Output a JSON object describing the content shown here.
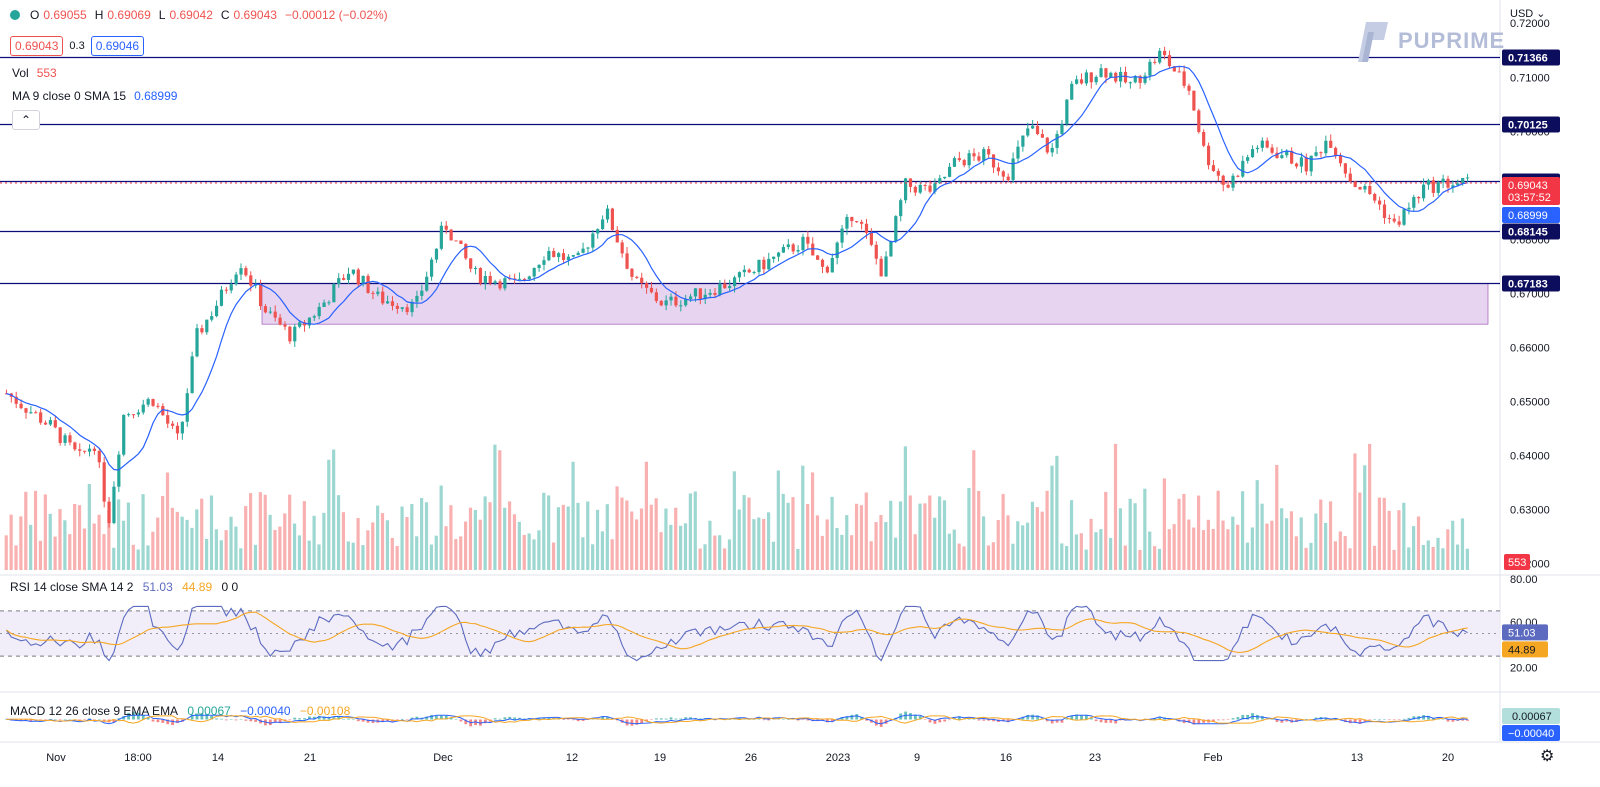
{
  "header": {
    "ohlc": [
      {
        "key": "O",
        "value": "0.69055"
      },
      {
        "key": "H",
        "value": "0.69069"
      },
      {
        "key": "L",
        "value": "0.69042"
      },
      {
        "key": "C",
        "value": "0.69043"
      }
    ],
    "change": "−0.00012 (−0.02%)",
    "sell_price": "0.69043",
    "spread": "0.3",
    "buy_price": "0.69046"
  },
  "legend": {
    "volume_label": "Vol",
    "volume_value": "553",
    "ma_label": "MA 9 close 0 SMA 15",
    "ma_value": "0.68999",
    "collapse_symbol": "⌃"
  },
  "brand": {
    "name": "PUPRIME"
  },
  "currency_menu": "USD ⌄",
  "settings_icon": "gear-icon",
  "colors": {
    "up": "#26a69a",
    "down": "#ef5350",
    "ma": "#2962ff",
    "horizontal_lines": "#0d0d7a",
    "range_zone": "#e6d4f0",
    "rsi_line": "#5c6bc0",
    "rsi_ma": "#f5a623",
    "current_price": "#f23645"
  },
  "chart_data": {
    "type": "candlestick",
    "title": "",
    "y_ticks": [
      0.72,
      0.71,
      0.7,
      0.69,
      0.68,
      0.67,
      0.66,
      0.65,
      0.64,
      0.63,
      0.62
    ],
    "y_tick_labels": [
      "0.72000",
      "0.71000",
      "0.70000",
      "0.69000",
      "0.68000",
      "0.67000",
      "0.66000",
      "0.65000",
      "0.64000",
      "0.63000",
      "0.62000"
    ],
    "ylim": [
      0.6188,
      0.7243
    ],
    "x_tick_labels": [
      "Nov",
      "18:00",
      "14",
      "21",
      "Dec",
      "12",
      "19",
      "26",
      "2023",
      "9",
      "16",
      "23",
      "Feb",
      "13",
      "20"
    ],
    "levels": [
      0.71366,
      0.70125,
      0.6907,
      0.68145,
      0.67183
    ],
    "level_labels": [
      "0.71366",
      "0.70125",
      "0.69070",
      "0.68145",
      "0.67183"
    ],
    "current_price": "0.69043",
    "countdown": "03:57:52",
    "ma_current": "0.68999",
    "volume_current": "553",
    "range_zone": {
      "top": 0.67183,
      "bottom": 0.6643
    },
    "price_path": [
      [
        0,
        0.6515
      ],
      [
        0.03,
        0.6455
      ],
      [
        0.05,
        0.6395
      ],
      [
        0.06,
        0.6425
      ],
      [
        0.07,
        0.628
      ],
      [
        0.08,
        0.6475
      ],
      [
        0.1,
        0.6505
      ],
      [
        0.118,
        0.6425
      ],
      [
        0.13,
        0.662
      ],
      [
        0.145,
        0.6685
      ],
      [
        0.16,
        0.676
      ],
      [
        0.178,
        0.6665
      ],
      [
        0.195,
        0.662
      ],
      [
        0.215,
        0.6675
      ],
      [
        0.235,
        0.6745
      ],
      [
        0.255,
        0.669
      ],
      [
        0.28,
        0.6675
      ],
      [
        0.3,
        0.683
      ],
      [
        0.32,
        0.6735
      ],
      [
        0.35,
        0.6715
      ],
      [
        0.37,
        0.678
      ],
      [
        0.39,
        0.6755
      ],
      [
        0.41,
        0.6855
      ],
      [
        0.43,
        0.672
      ],
      [
        0.45,
        0.668
      ],
      [
        0.475,
        0.67
      ],
      [
        0.5,
        0.6725
      ],
      [
        0.525,
        0.6765
      ],
      [
        0.545,
        0.6795
      ],
      [
        0.56,
        0.674
      ],
      [
        0.58,
        0.6855
      ],
      [
        0.6,
        0.6735
      ],
      [
        0.615,
        0.69
      ],
      [
        0.635,
        0.689
      ],
      [
        0.65,
        0.6945
      ],
      [
        0.67,
        0.6955
      ],
      [
        0.685,
        0.692
      ],
      [
        0.7,
        0.701
      ],
      [
        0.715,
        0.696
      ],
      [
        0.73,
        0.7085
      ],
      [
        0.75,
        0.7115
      ],
      [
        0.77,
        0.7085
      ],
      [
        0.79,
        0.7145
      ],
      [
        0.81,
        0.7075
      ],
      [
        0.82,
        0.696
      ],
      [
        0.835,
        0.6895
      ],
      [
        0.855,
        0.6975
      ],
      [
        0.875,
        0.6955
      ],
      [
        0.89,
        0.6935
      ],
      [
        0.905,
        0.699
      ],
      [
        0.92,
        0.691
      ],
      [
        0.935,
        0.688
      ],
      [
        0.95,
        0.6825
      ],
      [
        0.97,
        0.6895
      ],
      [
        0.985,
        0.6904
      ]
    ]
  },
  "rsi": {
    "label": "RSI 14 close SMA 14 2",
    "value": "51.03",
    "ma_value": "44.89",
    "extra": "0 0",
    "axis_labels": [
      "80.00",
      "60.00",
      "20.00"
    ],
    "upper_band": 70,
    "lower_band": 30
  },
  "macd": {
    "label": "MACD 12 26 close 9 EMA EMA",
    "hist_value": "0.00067",
    "macd_value": "−0.00040",
    "signal_value": "−0.00108",
    "scale_hist": "0.00067",
    "scale_macd": "−0.00040"
  }
}
